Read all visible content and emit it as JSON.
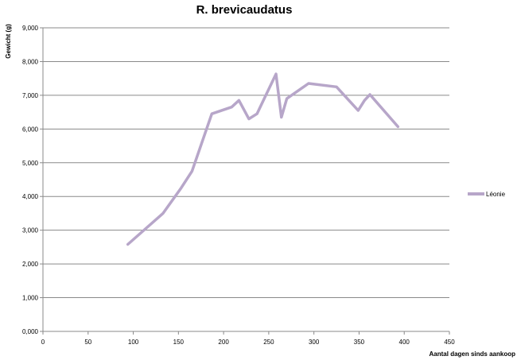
{
  "chart_data": {
    "type": "line",
    "title": "R. brevicaudatus",
    "xlabel": "Aantal dagen sinds aankoop",
    "ylabel": "Gewicht (g)",
    "xlim": [
      0,
      450
    ],
    "ylim": [
      0,
      9
    ],
    "x_ticks": [
      "0",
      "50",
      "100",
      "150",
      "200",
      "250",
      "300",
      "350",
      "400",
      "450"
    ],
    "y_ticks": [
      "0,000",
      "1,000",
      "2,000",
      "3,000",
      "4,000",
      "5,000",
      "6,000",
      "7,000",
      "8,000",
      "9,000"
    ],
    "grid": "horizontal",
    "legend_position": "right",
    "series": [
      {
        "name": "Léonie",
        "color": "#b7a6c9",
        "x": [
          94,
          133,
          153,
          165,
          187,
          209,
          217,
          228,
          237,
          258,
          264,
          270,
          294,
          325,
          349,
          356,
          362,
          393
        ],
        "y": [
          2.58,
          3.5,
          4.25,
          4.75,
          6.45,
          6.65,
          6.85,
          6.3,
          6.45,
          7.63,
          6.35,
          6.9,
          7.35,
          7.25,
          6.55,
          6.85,
          7.02,
          6.07
        ]
      }
    ]
  }
}
